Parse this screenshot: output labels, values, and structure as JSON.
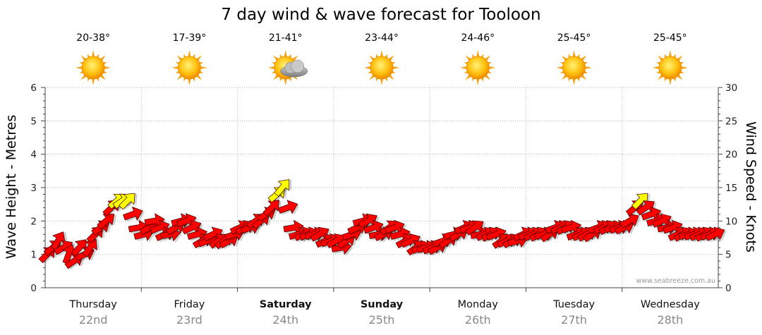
{
  "chart_data": {
    "type": "forecast",
    "title": "7 day wind & wave forecast for Tooloon",
    "ylabel_left": "Wave Height - Metres",
    "ylabel_right": "Wind Speed - Knots",
    "ylim_left": [
      0,
      6
    ],
    "ylim_right": [
      0,
      30
    ],
    "yticks_left": [
      "0",
      "1",
      "2",
      "3",
      "4",
      "5",
      "6"
    ],
    "yticks_right": [
      "0",
      "5",
      "10",
      "15",
      "20",
      "25",
      "30"
    ],
    "watermark": "www.seabreeze.com.au",
    "days": [
      {
        "name": "Thursday",
        "date": "22nd",
        "temp": "20-38°",
        "icon": "sun-icon",
        "bold": false
      },
      {
        "name": "Friday",
        "date": "23rd",
        "temp": "17-39°",
        "icon": "sun-icon",
        "bold": false
      },
      {
        "name": "Saturday",
        "date": "24th",
        "temp": "21-41°",
        "icon": "sun-cloud-icon",
        "bold": true
      },
      {
        "name": "Sunday",
        "date": "25th",
        "temp": "23-44°",
        "icon": "sun-icon",
        "bold": true
      },
      {
        "name": "Monday",
        "date": "26th",
        "temp": "24-46°",
        "icon": "sun-icon",
        "bold": false
      },
      {
        "name": "Tuesday",
        "date": "27th",
        "temp": "25-45°",
        "icon": "sun-icon",
        "bold": false
      },
      {
        "name": "Wednesday",
        "date": "28th",
        "temp": "25-45°",
        "icon": "sun-icon",
        "bold": false
      }
    ],
    "wind_series": {
      "name": "Wind (knots)",
      "start_day_fraction": 0,
      "samples_per_day": 18,
      "speeds": [
        5,
        6,
        7,
        6,
        5,
        4,
        6,
        5,
        6,
        8,
        9,
        10,
        12,
        13,
        13,
        13,
        11,
        9,
        8,
        9,
        10,
        9,
        8,
        8,
        9,
        10,
        10,
        9,
        8,
        7,
        7,
        8,
        7,
        7,
        7,
        8,
        9,
        9,
        9,
        10,
        10,
        11,
        12,
        14,
        15,
        12,
        9,
        8,
        8,
        8,
        8,
        8,
        7,
        7,
        7,
        6,
        7,
        8,
        9,
        10,
        10,
        9,
        8,
        8,
        9,
        9,
        8,
        7,
        7,
        6,
        6,
        6,
        6,
        6,
        7,
        7,
        8,
        8,
        9,
        9,
        9,
        8,
        8,
        8,
        8,
        7,
        7,
        7,
        7,
        8,
        8,
        8,
        8,
        8,
        8,
        9,
        9,
        9,
        9,
        8,
        8,
        8,
        8,
        9,
        9,
        9,
        9,
        9,
        9,
        10,
        12,
        13,
        12,
        11,
        10,
        10,
        9,
        9,
        8,
        8,
        8,
        8,
        8,
        8,
        8,
        8
      ],
      "directions_deg": [
        225,
        230,
        210,
        240,
        200,
        235,
        220,
        245,
        215,
        225,
        235,
        230,
        225,
        230,
        235,
        225,
        250,
        260,
        255,
        240,
        260,
        250,
        245,
        260,
        240,
        255,
        250,
        245,
        255,
        240,
        250,
        245,
        235,
        230,
        240,
        250,
        245,
        240,
        250,
        235,
        230,
        240,
        225,
        230,
        220,
        250,
        260,
        255,
        245,
        250,
        255,
        240,
        245,
        250,
        240,
        260,
        235,
        250,
        245,
        255,
        240,
        250,
        260,
        245,
        235,
        250,
        255,
        240,
        245,
        235,
        250,
        255,
        245,
        240,
        250,
        235,
        255,
        240,
        245,
        250,
        235,
        260,
        245,
        240,
        250,
        235,
        245,
        240,
        255,
        245,
        250,
        245,
        240,
        255,
        235,
        250,
        245,
        240,
        255,
        250,
        245,
        240,
        235,
        250,
        245,
        240,
        255,
        250,
        245,
        240,
        230,
        225,
        235,
        250,
        255,
        245,
        260,
        250,
        245,
        240,
        255,
        250,
        245,
        240,
        250,
        245
      ],
      "yellow_threshold_knots": 12.5
    }
  }
}
